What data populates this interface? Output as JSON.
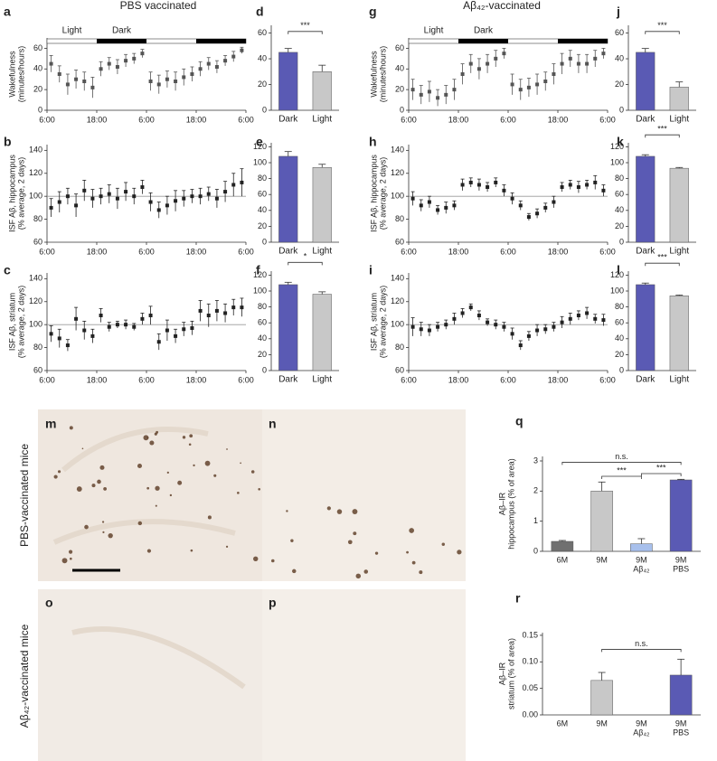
{
  "column_titles": [
    "PBS vaccinated",
    "Aβ₄₂-vaccinated"
  ],
  "row_labels": [
    "PBS-vaccinated mice",
    "Aβ₄₂-vaccinated mice"
  ],
  "images": [
    {
      "panel": "m"
    },
    {
      "panel": "n"
    },
    {
      "panel": "o"
    },
    {
      "panel": "p"
    }
  ],
  "chart_data": [
    {
      "type": "scatter",
      "panel": "a",
      "ylabel": [
        "Wakefulness",
        "(minutes/hours)"
      ],
      "color": "#555555",
      "x": [
        1,
        3,
        5,
        7,
        9,
        11,
        13,
        15,
        17,
        19,
        21,
        23,
        25,
        27,
        29,
        31,
        33,
        35,
        37,
        39,
        41,
        43,
        45,
        47
      ],
      "values": [
        45,
        35,
        25,
        30,
        28,
        22,
        40,
        45,
        42,
        48,
        50,
        55,
        28,
        25,
        30,
        28,
        32,
        35,
        40,
        45,
        42,
        48,
        52,
        58
      ],
      "errors": [
        8,
        8,
        10,
        9,
        9,
        10,
        7,
        6,
        7,
        6,
        5,
        4,
        9,
        9,
        8,
        9,
        8,
        7,
        7,
        6,
        6,
        5,
        5,
        3
      ],
      "xlim": [
        0,
        48
      ],
      "xticks": [
        {
          "value": 0,
          "label": "6:00"
        },
        {
          "value": 12,
          "label": "18:00"
        },
        {
          "value": 24,
          "label": "6:00"
        },
        {
          "value": 36,
          "label": "18:00"
        },
        {
          "value": 48,
          "label": "6:00"
        }
      ],
      "ylim": [
        0,
        70
      ],
      "yticks": [
        0,
        20,
        40,
        60
      ],
      "phase_labels": {
        "light": "Light",
        "dark": "Dark"
      },
      "dark_periods": [
        [
          12,
          24
        ],
        [
          36,
          48
        ]
      ]
    },
    {
      "type": "bar",
      "panel": "d",
      "categories": [
        "Dark",
        "Light"
      ],
      "values": [
        45,
        30
      ],
      "errors": [
        3,
        5
      ],
      "colors": [
        "#5a5ab4",
        "#c8c8c8"
      ],
      "ylim": [
        0,
        66
      ],
      "yticks": [
        0,
        20,
        40,
        60
      ],
      "significance": [
        {
          "between": [
            0,
            1
          ],
          "label": "***"
        }
      ]
    },
    {
      "type": "scatter",
      "panel": "b",
      "ylabel": [
        "ISF Aβ, hippocampus",
        "(% average, 2 days)"
      ],
      "color": "#222222",
      "x": [
        1,
        3,
        5,
        7,
        9,
        11,
        13,
        15,
        17,
        19,
        21,
        23,
        25,
        27,
        29,
        31,
        33,
        35,
        37,
        39,
        41,
        43,
        45,
        47
      ],
      "values": [
        90,
        95,
        100,
        92,
        105,
        98,
        100,
        102,
        98,
        104,
        100,
        108,
        95,
        88,
        92,
        96,
        98,
        100,
        100,
        102,
        98,
        104,
        110,
        112
      ],
      "errors": [
        8,
        9,
        7,
        10,
        9,
        8,
        7,
        8,
        9,
        8,
        7,
        6,
        8,
        7,
        8,
        9,
        7,
        6,
        7,
        6,
        8,
        9,
        10,
        12
      ],
      "xlim": [
        0,
        48
      ],
      "xticks": [
        {
          "value": 0,
          "label": "6:00"
        },
        {
          "value": 12,
          "label": "18:00"
        },
        {
          "value": 24,
          "label": "6:00"
        },
        {
          "value": 36,
          "label": "18:00"
        },
        {
          "value": 48,
          "label": "6:00"
        }
      ],
      "ylim": [
        60,
        145
      ],
      "yticks": [
        60,
        80,
        100,
        120,
        140
      ],
      "reference_line": 100
    },
    {
      "type": "bar",
      "panel": "e",
      "categories": [
        "Dark",
        "Light"
      ],
      "values": [
        108,
        94
      ],
      "errors": [
        6,
        4
      ],
      "colors": [
        "#5a5ab4",
        "#c8c8c8"
      ],
      "ylim": [
        0,
        125
      ],
      "yticks": [
        0,
        20,
        40,
        60,
        80,
        100,
        120
      ],
      "significance": []
    },
    {
      "type": "scatter",
      "panel": "c",
      "ylabel": [
        "ISF Aβ, striatum",
        "(% average, 2 days)"
      ],
      "color": "#222222",
      "x": [
        1,
        3,
        5,
        7,
        9,
        11,
        13,
        15,
        17,
        19,
        21,
        23,
        25,
        27,
        29,
        31,
        33,
        35,
        37,
        39,
        41,
        43,
        45,
        47
      ],
      "values": [
        92,
        88,
        82,
        105,
        95,
        90,
        108,
        98,
        100,
        100,
        98,
        105,
        108,
        85,
        95,
        90,
        96,
        97,
        112,
        108,
        112,
        110,
        115,
        115
      ],
      "errors": [
        7,
        8,
        5,
        10,
        8,
        6,
        6,
        4,
        3,
        4,
        3,
        5,
        8,
        7,
        9,
        6,
        6,
        6,
        9,
        10,
        9,
        8,
        7,
        8
      ],
      "xlim": [
        0,
        48
      ],
      "xticks": [
        {
          "value": 0,
          "label": "6:00"
        },
        {
          "value": 12,
          "label": "18:00"
        },
        {
          "value": 24,
          "label": "6:00"
        },
        {
          "value": 36,
          "label": "18:00"
        },
        {
          "value": 48,
          "label": "6:00"
        }
      ],
      "ylim": [
        60,
        145
      ],
      "yticks": [
        60,
        80,
        100,
        120,
        140
      ],
      "reference_line": 100
    },
    {
      "type": "bar",
      "panel": "f",
      "categories": [
        "Dark",
        "Light"
      ],
      "values": [
        108,
        96
      ],
      "errors": [
        3,
        3
      ],
      "colors": [
        "#5a5ab4",
        "#c8c8c8"
      ],
      "ylim": [
        0,
        125
      ],
      "yticks": [
        0,
        20,
        40,
        60,
        80,
        100,
        120
      ],
      "significance": [
        {
          "between": [
            0,
            1
          ],
          "label": "*"
        }
      ]
    },
    {
      "type": "scatter",
      "panel": "g",
      "ylabel": [
        "Wakefulness",
        "(minutes/hours)"
      ],
      "color": "#555555",
      "x": [
        1,
        3,
        5,
        7,
        9,
        11,
        13,
        15,
        17,
        19,
        21,
        23,
        25,
        27,
        29,
        31,
        33,
        35,
        37,
        39,
        41,
        43,
        45,
        47
      ],
      "values": [
        20,
        15,
        18,
        12,
        15,
        20,
        35,
        45,
        40,
        45,
        50,
        55,
        25,
        20,
        22,
        25,
        28,
        35,
        45,
        50,
        45,
        45,
        50,
        55
      ],
      "errors": [
        10,
        9,
        10,
        8,
        9,
        10,
        10,
        9,
        10,
        9,
        8,
        5,
        10,
        10,
        9,
        10,
        9,
        10,
        10,
        8,
        9,
        9,
        8,
        5
      ],
      "xlim": [
        0,
        48
      ],
      "xticks": [
        {
          "value": 0,
          "label": "6:00"
        },
        {
          "value": 12,
          "label": "18:00"
        },
        {
          "value": 24,
          "label": "6:00"
        },
        {
          "value": 36,
          "label": "18:00"
        },
        {
          "value": 48,
          "label": "6:00"
        }
      ],
      "ylim": [
        0,
        70
      ],
      "yticks": [
        0,
        20,
        40,
        60
      ],
      "phase_labels": {
        "light": "Light",
        "dark": "Dark"
      },
      "dark_periods": [
        [
          12,
          24
        ],
        [
          36,
          48
        ]
      ]
    },
    {
      "type": "bar",
      "panel": "j",
      "categories": [
        "Dark",
        "Light"
      ],
      "values": [
        45,
        18
      ],
      "errors": [
        3,
        4
      ],
      "colors": [
        "#5a5ab4",
        "#c8c8c8"
      ],
      "ylim": [
        0,
        66
      ],
      "yticks": [
        0,
        20,
        40,
        60
      ],
      "significance": [
        {
          "between": [
            0,
            1
          ],
          "label": "***"
        }
      ]
    },
    {
      "type": "scatter",
      "panel": "h",
      "ylabel": [
        "ISF Aβ, hippocampus",
        "(% average, 2 days)"
      ],
      "color": "#222222",
      "x": [
        1,
        3,
        5,
        7,
        9,
        11,
        13,
        15,
        17,
        19,
        21,
        23,
        25,
        27,
        29,
        31,
        33,
        35,
        37,
        39,
        41,
        43,
        45,
        47
      ],
      "values": [
        98,
        92,
        95,
        88,
        90,
        92,
        110,
        112,
        110,
        108,
        112,
        105,
        98,
        92,
        82,
        85,
        90,
        95,
        108,
        110,
        108,
        110,
        112,
        105
      ],
      "errors": [
        6,
        5,
        5,
        4,
        5,
        4,
        5,
        4,
        5,
        4,
        4,
        5,
        5,
        4,
        3,
        4,
        4,
        5,
        4,
        4,
        5,
        4,
        6,
        5
      ],
      "xlim": [
        0,
        48
      ],
      "xticks": [
        {
          "value": 0,
          "label": "6:00"
        },
        {
          "value": 12,
          "label": "18:00"
        },
        {
          "value": 24,
          "label": "6:00"
        },
        {
          "value": 36,
          "label": "18:00"
        },
        {
          "value": 48,
          "label": "6:00"
        }
      ],
      "ylim": [
        60,
        145
      ],
      "yticks": [
        60,
        80,
        100,
        120,
        140
      ],
      "reference_line": 100
    },
    {
      "type": "bar",
      "panel": "k",
      "categories": [
        "Dark",
        "Light"
      ],
      "values": [
        108,
        93
      ],
      "errors": [
        2,
        1
      ],
      "colors": [
        "#5a5ab4",
        "#c8c8c8"
      ],
      "ylim": [
        0,
        125
      ],
      "yticks": [
        0,
        20,
        40,
        60,
        80,
        100,
        120
      ],
      "significance": [
        {
          "between": [
            0,
            1
          ],
          "label": "***"
        }
      ]
    },
    {
      "type": "scatter",
      "panel": "i",
      "ylabel": [
        "ISF Aβ, striatum",
        "(% average, 2 days)"
      ],
      "color": "#222222",
      "x": [
        1,
        3,
        5,
        7,
        9,
        11,
        13,
        15,
        17,
        19,
        21,
        23,
        25,
        27,
        29,
        31,
        33,
        35,
        37,
        39,
        41,
        43,
        45,
        47
      ],
      "values": [
        98,
        96,
        95,
        98,
        100,
        105,
        110,
        115,
        108,
        102,
        100,
        98,
        92,
        82,
        90,
        95,
        96,
        98,
        102,
        105,
        108,
        110,
        105,
        104
      ],
      "errors": [
        8,
        6,
        5,
        4,
        4,
        5,
        4,
        3,
        4,
        3,
        4,
        4,
        5,
        4,
        4,
        5,
        4,
        4,
        5,
        5,
        4,
        5,
        4,
        5
      ],
      "xlim": [
        0,
        48
      ],
      "xticks": [
        {
          "value": 0,
          "label": "6:00"
        },
        {
          "value": 12,
          "label": "18:00"
        },
        {
          "value": 24,
          "label": "6:00"
        },
        {
          "value": 36,
          "label": "18:00"
        },
        {
          "value": 48,
          "label": "6:00"
        }
      ],
      "ylim": [
        60,
        145
      ],
      "yticks": [
        60,
        80,
        100,
        120,
        140
      ],
      "reference_line": 100
    },
    {
      "type": "bar",
      "panel": "l",
      "categories": [
        "Dark",
        "Light"
      ],
      "values": [
        108,
        94
      ],
      "errors": [
        2,
        1
      ],
      "colors": [
        "#5a5ab4",
        "#c8c8c8"
      ],
      "ylim": [
        0,
        125
      ],
      "yticks": [
        0,
        20,
        40,
        60,
        80,
        100,
        120
      ],
      "significance": [
        {
          "between": [
            0,
            1
          ],
          "label": "***"
        }
      ]
    },
    {
      "type": "bar",
      "panel": "q",
      "ylabel": [
        "Aβ–IR",
        "hippocampus (% of area)"
      ],
      "categories": [
        [
          "6M"
        ],
        [
          "9M"
        ],
        [
          "9M",
          "Aβ₄₂"
        ],
        [
          "9M",
          "PBS"
        ]
      ],
      "values": [
        0.33,
        2.0,
        0.25,
        2.37
      ],
      "errors": [
        0.03,
        0.3,
        0.17,
        0.02
      ],
      "colors": [
        "#707070",
        "#c8c8c8",
        "#a8c0ec",
        "#5a5ab4"
      ],
      "ylim": [
        0,
        3.15
      ],
      "yticks": [
        0,
        1,
        2,
        3
      ],
      "significance": [
        {
          "between": [
            1,
            2
          ],
          "label": "***"
        },
        {
          "between": [
            2,
            3
          ],
          "label": "***"
        },
        {
          "between": [
            0,
            3
          ],
          "label": "n.s."
        }
      ]
    },
    {
      "type": "bar",
      "panel": "r",
      "ylabel": [
        "Aβ–IR",
        "striatum (% of area)"
      ],
      "categories": [
        [
          "6M"
        ],
        [
          "9M"
        ],
        [
          "9M",
          "Aβ₄₂"
        ],
        [
          "9M",
          "PBS"
        ]
      ],
      "values": [
        0,
        0.065,
        0,
        0.075
      ],
      "errors": [
        null,
        0.015,
        null,
        0.03
      ],
      "colors": [
        "#707070",
        "#c8c8c8",
        "#a8c0ec",
        "#5a5ab4"
      ],
      "ylim": [
        0,
        0.155
      ],
      "yticks": [
        {
          "value": 0,
          "label": "0.00"
        },
        {
          "value": 0.05,
          "label": "0.05"
        },
        {
          "value": 0.1,
          "label": "0.10"
        },
        {
          "value": 0.15,
          "label": "0.15"
        }
      ],
      "significance": [
        {
          "between": [
            1,
            3
          ],
          "label": "n.s."
        }
      ]
    }
  ]
}
